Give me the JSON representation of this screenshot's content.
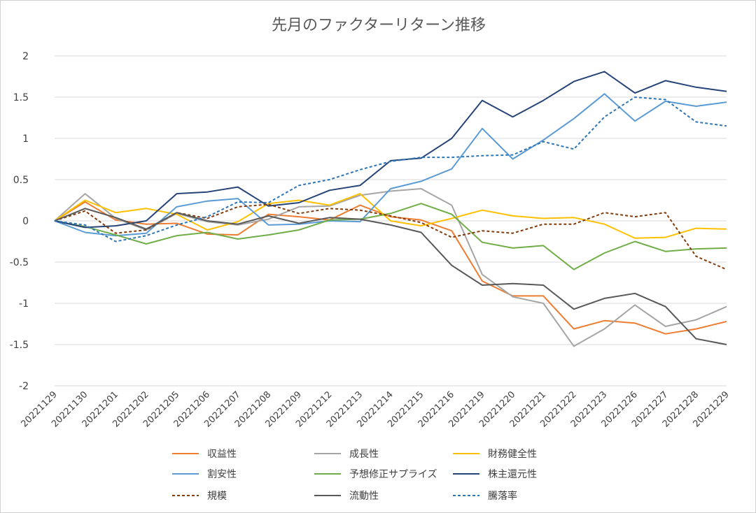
{
  "chart_data": {
    "type": "line",
    "title": "先月のファクターリターン推移",
    "xlabel": "",
    "ylabel": "",
    "ylim": [
      -2,
      2
    ],
    "yticks": [
      "2",
      "1.5",
      "1",
      "0.5",
      "0",
      "-0.5",
      "-1",
      "-1.5",
      "-2"
    ],
    "ytick_values": [
      2,
      1.5,
      1,
      0.5,
      0,
      -0.5,
      -1,
      -1.5,
      -2
    ],
    "grid": true,
    "legend_position": "bottom",
    "categories": [
      "20221129",
      "20221130",
      "20221201",
      "20221202",
      "20221205",
      "20221206",
      "20221207",
      "20221208",
      "20221209",
      "20221212",
      "20221213",
      "20221214",
      "20221215",
      "20221216",
      "20221219",
      "20221220",
      "20221221",
      "20221222",
      "20221223",
      "20221226",
      "20221227",
      "20221228",
      "20221229"
    ],
    "series": [
      {
        "name": "収益性",
        "color": "#ED7D31",
        "dash": "solid",
        "values": [
          0,
          0.23,
          0.01,
          -0.04,
          -0.03,
          -0.16,
          -0.17,
          0.08,
          0.05,
          0.01,
          0.19,
          0.05,
          0.01,
          -0.12,
          -0.73,
          -0.91,
          -0.91,
          -1.31,
          -1.21,
          -1.24,
          -1.37,
          -1.31,
          -1.22
        ]
      },
      {
        "name": "成長性",
        "color": "#A5A5A5",
        "dash": "solid",
        "values": [
          0,
          0.33,
          0.03,
          -0.11,
          0.09,
          -0.01,
          -0.05,
          0.02,
          0.17,
          0.18,
          0.31,
          0.36,
          0.39,
          0.19,
          -0.65,
          -0.92,
          -1.0,
          -1.52,
          -1.31,
          -1.02,
          -1.28,
          -1.2,
          -1.04
        ]
      },
      {
        "name": "財務健全性",
        "color": "#FFC000",
        "dash": "solid",
        "values": [
          0,
          0.25,
          0.1,
          0.15,
          0.08,
          -0.11,
          -0.01,
          0.21,
          0.25,
          0.19,
          0.33,
          0.0,
          -0.06,
          0.03,
          0.13,
          0.06,
          0.03,
          0.04,
          -0.04,
          -0.21,
          -0.2,
          -0.09,
          -0.1
        ]
      },
      {
        "name": "割安性",
        "color": "#5B9BD5",
        "dash": "solid",
        "values": [
          0,
          -0.14,
          -0.18,
          -0.15,
          0.17,
          0.24,
          0.27,
          -0.05,
          -0.04,
          0.0,
          -0.01,
          0.39,
          0.48,
          0.63,
          1.12,
          0.75,
          0.98,
          1.24,
          1.54,
          1.21,
          1.45,
          1.39,
          1.44
        ]
      },
      {
        "name": "予想修正サプライズ",
        "color": "#70AD47",
        "dash": "solid",
        "values": [
          0,
          -0.07,
          -0.17,
          -0.28,
          -0.18,
          -0.14,
          -0.22,
          -0.17,
          -0.11,
          0.01,
          0.02,
          0.09,
          0.21,
          0.08,
          -0.26,
          -0.33,
          -0.3,
          -0.59,
          -0.39,
          -0.25,
          -0.37,
          -0.34,
          -0.33
        ]
      },
      {
        "name": "株主還元性",
        "color": "#264478",
        "dash": "solid",
        "values": [
          0,
          -0.08,
          -0.06,
          0.0,
          0.33,
          0.35,
          0.41,
          0.18,
          0.22,
          0.37,
          0.43,
          0.73,
          0.76,
          1.0,
          1.46,
          1.26,
          1.46,
          1.69,
          1.81,
          1.55,
          1.7,
          1.62,
          1.57
        ]
      },
      {
        "name": "規模",
        "color": "#843C0C",
        "dash": "dashed",
        "values": [
          0,
          0.12,
          -0.15,
          -0.11,
          0.1,
          0.03,
          0.17,
          0.2,
          0.09,
          0.15,
          0.13,
          0.06,
          -0.02,
          -0.2,
          -0.12,
          -0.15,
          -0.04,
          -0.04,
          0.1,
          0.05,
          0.1,
          -0.43,
          -0.59
        ]
      },
      {
        "name": "流動性",
        "color": "#595959",
        "dash": "solid",
        "values": [
          0,
          0.15,
          0.04,
          -0.1,
          0.1,
          0.0,
          -0.04,
          0.06,
          -0.03,
          0.04,
          0.02,
          -0.05,
          -0.14,
          -0.54,
          -0.78,
          -0.76,
          -0.78,
          -1.07,
          -0.94,
          -0.88,
          -1.04,
          -1.43,
          -1.5
        ]
      },
      {
        "name": "騰落率",
        "color": "#2E75B6",
        "dash": "dashed",
        "values": [
          0,
          -0.05,
          -0.25,
          -0.18,
          -0.05,
          0.05,
          0.23,
          0.22,
          0.43,
          0.5,
          0.62,
          0.72,
          0.77,
          0.77,
          0.79,
          0.8,
          0.96,
          0.87,
          1.26,
          1.5,
          1.47,
          1.2,
          1.15
        ]
      }
    ]
  }
}
